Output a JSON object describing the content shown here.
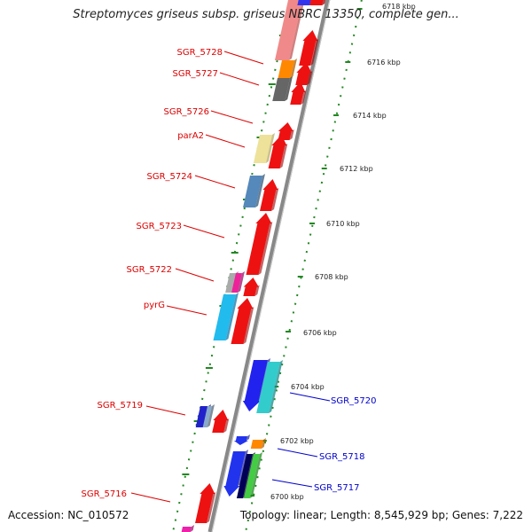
{
  "title": "Streptomyces griseus subsp. griseus NBRC 13350, complete gen...",
  "footer": {
    "accession": "Accession: NC_010572",
    "summary": "Topology: linear; Length: 8,545,929 bp; Genes: 7,222"
  },
  "colors": {
    "forward_label": "#dd0000",
    "reverse_label": "#0000cc",
    "backbone": "#888888",
    "gc_dots": "#228822",
    "forward_gene": "#ee1111"
  },
  "ticks": [
    "6718 kbp",
    "6716 kbp",
    "6714 kbp",
    "6712 kbp",
    "6710 kbp",
    "6708 kbp",
    "6706 kbp",
    "6704 kbp",
    "6702 kbp",
    "6700 kbp"
  ],
  "forward_labels": [
    "SGR_5728",
    "SGR_5727",
    "SGR_5726",
    "parA2",
    "SGR_5724",
    "SGR_5723",
    "SGR_5722",
    "pyrG",
    "SGR_5719",
    "SGR_5716"
  ],
  "reverse_labels": [
    "SGR_5720",
    "SGR_5718",
    "SGR_5717"
  ]
}
